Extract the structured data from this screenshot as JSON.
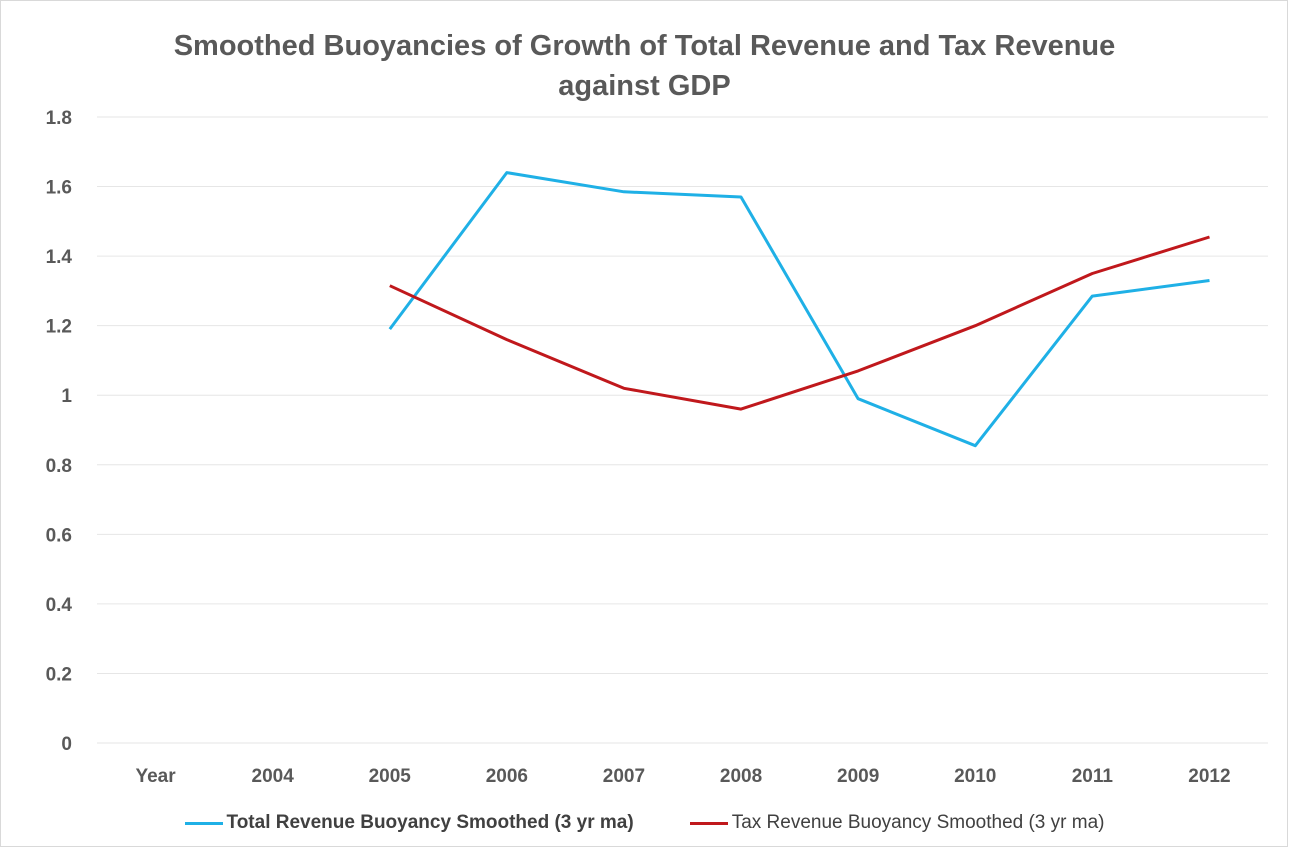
{
  "chart_data": {
    "type": "line",
    "title": "Smoothed Buoyancies of Growth of Total Revenue and Tax Revenue\nagainst GDP",
    "categories": [
      "Year",
      "2004",
      "2005",
      "2006",
      "2007",
      "2008",
      "2009",
      "2010",
      "2011",
      "2012"
    ],
    "y_ticks": [
      "0",
      "0.2",
      "0.4",
      "0.6",
      "0.8",
      "1",
      "1.2",
      "1.4",
      "1.6",
      "1.8"
    ],
    "ylim": [
      0,
      1.8
    ],
    "grid": true,
    "legend_position": "bottom",
    "series": [
      {
        "name": "Total Revenue Buoyancy Smoothed (3 yr ma)",
        "color": "#1fb0e6",
        "values": [
          null,
          null,
          1.19,
          1.64,
          1.585,
          1.57,
          0.99,
          0.855,
          1.285,
          1.33
        ]
      },
      {
        "name": "Tax Revenue Buoyancy Smoothed (3 yr ma)",
        "color": "#c0181c",
        "values": [
          null,
          null,
          1.315,
          1.16,
          1.02,
          0.96,
          1.07,
          1.2,
          1.35,
          1.455
        ]
      }
    ]
  }
}
